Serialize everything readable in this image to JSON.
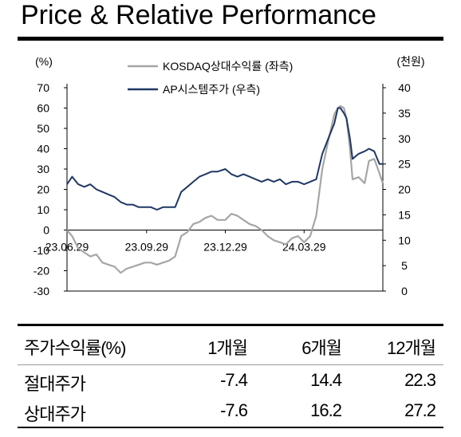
{
  "title": "Price & Relative Performance",
  "chart_data": {
    "type": "line",
    "left_axis": {
      "unit_label": "(%)",
      "min": -30,
      "max": 70,
      "ticks": [
        "70",
        "60",
        "50",
        "40",
        "30",
        "20",
        "10",
        "0",
        "-10",
        "-20",
        "-30"
      ]
    },
    "right_axis": {
      "unit_label": "(천원)",
      "min": 0,
      "max": 40,
      "ticks": [
        "40",
        "35",
        "30",
        "25",
        "20",
        "15",
        "10",
        "5",
        "0"
      ]
    },
    "x_ticks": [
      "23.06.29",
      "23.09.29",
      "23.12.29",
      "24.03.29"
    ],
    "x_range": [
      "2023-06-29",
      "2024-06-28"
    ],
    "legend_position": "top",
    "series": [
      {
        "name": "KOSDAQ상대수익률 (좌측)",
        "axis": "left",
        "color": "#a6a6a6",
        "points": [
          [
            "2023-06-29",
            0
          ],
          [
            "2023-07-05",
            -3
          ],
          [
            "2023-07-12",
            -9
          ],
          [
            "2023-07-19",
            -11
          ],
          [
            "2023-07-26",
            -13
          ],
          [
            "2023-08-02",
            -12
          ],
          [
            "2023-08-09",
            -16
          ],
          [
            "2023-08-16",
            -17
          ],
          [
            "2023-08-23",
            -18
          ],
          [
            "2023-08-30",
            -21
          ],
          [
            "2023-09-06",
            -19
          ],
          [
            "2023-09-13",
            -18
          ],
          [
            "2023-09-20",
            -17
          ],
          [
            "2023-09-27",
            -16
          ],
          [
            "2023-10-04",
            -16
          ],
          [
            "2023-10-11",
            -17
          ],
          [
            "2023-10-18",
            -16
          ],
          [
            "2023-10-25",
            -15
          ],
          [
            "2023-11-01",
            -13
          ],
          [
            "2023-11-08",
            -3
          ],
          [
            "2023-11-15",
            -1
          ],
          [
            "2023-11-22",
            3
          ],
          [
            "2023-11-29",
            4
          ],
          [
            "2023-12-06",
            6
          ],
          [
            "2023-12-13",
            7
          ],
          [
            "2023-12-20",
            5
          ],
          [
            "2023-12-29",
            5
          ],
          [
            "2024-01-05",
            8
          ],
          [
            "2024-01-12",
            7
          ],
          [
            "2024-01-19",
            5
          ],
          [
            "2024-01-26",
            3
          ],
          [
            "2024-02-02",
            2
          ],
          [
            "2024-02-09",
            0
          ],
          [
            "2024-02-16",
            -3
          ],
          [
            "2024-02-23",
            -5
          ],
          [
            "2024-03-01",
            -6
          ],
          [
            "2024-03-08",
            -7
          ],
          [
            "2024-03-15",
            -4
          ],
          [
            "2024-03-22",
            -3
          ],
          [
            "2024-03-29",
            -6
          ],
          [
            "2024-04-05",
            -3
          ],
          [
            "2024-04-12",
            7
          ],
          [
            "2024-04-19",
            30
          ],
          [
            "2024-04-26",
            44
          ],
          [
            "2024-05-03",
            57
          ],
          [
            "2024-05-07",
            60
          ],
          [
            "2024-05-10",
            61
          ],
          [
            "2024-05-14",
            60
          ],
          [
            "2024-05-17",
            55
          ],
          [
            "2024-05-21",
            40
          ],
          [
            "2024-05-24",
            25
          ],
          [
            "2024-05-31",
            26
          ],
          [
            "2024-06-07",
            23
          ],
          [
            "2024-06-12",
            34
          ],
          [
            "2024-06-18",
            35
          ],
          [
            "2024-06-24",
            28
          ],
          [
            "2024-06-28",
            23
          ]
        ]
      },
      {
        "name": "AP시스템주가 (우측)",
        "axis": "right",
        "color": "#1f3864",
        "points": [
          [
            "2023-06-29",
            21
          ],
          [
            "2023-07-05",
            22.5
          ],
          [
            "2023-07-12",
            21
          ],
          [
            "2023-07-19",
            20.5
          ],
          [
            "2023-07-26",
            21
          ],
          [
            "2023-08-02",
            20
          ],
          [
            "2023-08-09",
            19.5
          ],
          [
            "2023-08-16",
            19
          ],
          [
            "2023-08-23",
            18.5
          ],
          [
            "2023-08-30",
            17.5
          ],
          [
            "2023-09-06",
            17
          ],
          [
            "2023-09-13",
            17
          ],
          [
            "2023-09-20",
            16.5
          ],
          [
            "2023-09-27",
            16.5
          ],
          [
            "2023-10-04",
            16.5
          ],
          [
            "2023-10-11",
            16
          ],
          [
            "2023-10-18",
            16.5
          ],
          [
            "2023-10-25",
            16.5
          ],
          [
            "2023-11-01",
            16.5
          ],
          [
            "2023-11-08",
            19.5
          ],
          [
            "2023-11-15",
            20.5
          ],
          [
            "2023-11-22",
            21.5
          ],
          [
            "2023-11-29",
            22.5
          ],
          [
            "2023-12-06",
            23
          ],
          [
            "2023-12-13",
            23.5
          ],
          [
            "2023-12-20",
            23.5
          ],
          [
            "2023-12-29",
            24
          ],
          [
            "2024-01-05",
            23
          ],
          [
            "2024-01-12",
            22.5
          ],
          [
            "2024-01-19",
            23
          ],
          [
            "2024-01-26",
            22.5
          ],
          [
            "2024-02-02",
            22
          ],
          [
            "2024-02-09",
            21.5
          ],
          [
            "2024-02-16",
            22
          ],
          [
            "2024-02-23",
            21.5
          ],
          [
            "2024-03-01",
            22
          ],
          [
            "2024-03-08",
            21
          ],
          [
            "2024-03-15",
            21.5
          ],
          [
            "2024-03-22",
            21.5
          ],
          [
            "2024-03-29",
            21
          ],
          [
            "2024-04-05",
            21.5
          ],
          [
            "2024-04-12",
            22
          ],
          [
            "2024-04-19",
            27
          ],
          [
            "2024-04-26",
            30
          ],
          [
            "2024-05-03",
            33
          ],
          [
            "2024-05-07",
            36
          ],
          [
            "2024-05-10",
            36
          ],
          [
            "2024-05-14",
            35
          ],
          [
            "2024-05-17",
            34
          ],
          [
            "2024-05-21",
            30
          ],
          [
            "2024-05-24",
            26
          ],
          [
            "2024-05-31",
            27
          ],
          [
            "2024-06-07",
            27.5
          ],
          [
            "2024-06-12",
            28
          ],
          [
            "2024-06-18",
            27.5
          ],
          [
            "2024-06-24",
            25
          ],
          [
            "2024-06-28",
            25
          ]
        ]
      }
    ]
  },
  "table": {
    "headers": [
      "주가수익률(%)",
      "1개월",
      "6개월",
      "12개월"
    ],
    "rows": [
      [
        "절대주가",
        "-7.4",
        "14.4",
        "22.3"
      ],
      [
        "상대주가",
        "-7.6",
        "16.2",
        "27.2"
      ]
    ]
  }
}
